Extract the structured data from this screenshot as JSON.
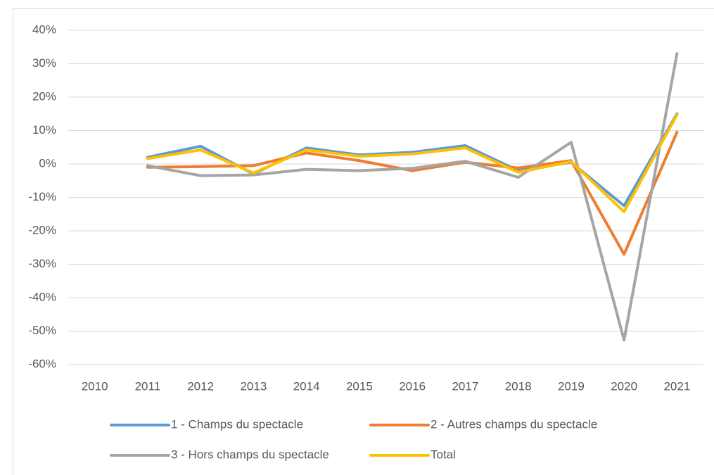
{
  "chart_data": {
    "type": "line",
    "categories": [
      "2010",
      "2011",
      "2012",
      "2013",
      "2014",
      "2015",
      "2016",
      "2017",
      "2018",
      "2019",
      "2020",
      "2021"
    ],
    "series": [
      {
        "name": "1 - Champs du spectacle",
        "color": "#5b9bd5",
        "values": [
          null,
          2,
          5.3,
          -3,
          4.8,
          2.7,
          3.5,
          5.5,
          -2,
          0.5,
          -12.5,
          15
        ]
      },
      {
        "name": "2 - Autres champs du spectacle",
        "color": "#ed7d31",
        "values": [
          null,
          -1,
          -0.8,
          -0.5,
          3.3,
          1,
          -2,
          0.5,
          -1.2,
          1,
          -27,
          9.5
        ]
      },
      {
        "name": "3 - Hors champs du spectacle",
        "color": "#a5a5a5",
        "values": [
          null,
          -0.5,
          -3.5,
          -3.3,
          -1.6,
          -2,
          -1.3,
          0.8,
          -4,
          6.5,
          -52.7,
          33
        ]
      },
      {
        "name": "Total",
        "color": "#ffc000",
        "values": [
          null,
          1.6,
          4.2,
          -2.7,
          4.2,
          2.3,
          3,
          4.8,
          -2.5,
          0.7,
          -14.3,
          14.7
        ]
      }
    ],
    "ylim": [
      -60,
      40
    ],
    "yticks": [
      {
        "value": -60,
        "label": "-60%"
      },
      {
        "value": -50,
        "label": "-50%"
      },
      {
        "value": -40,
        "label": "-40%"
      },
      {
        "value": -30,
        "label": "-30%"
      },
      {
        "value": -20,
        "label": "-20%"
      },
      {
        "value": -10,
        "label": "-10%"
      },
      {
        "value": 0,
        "label": "0%"
      },
      {
        "value": 10,
        "label": "10%"
      },
      {
        "value": 20,
        "label": "20%"
      },
      {
        "value": 30,
        "label": "30%"
      },
      {
        "value": 40,
        "label": "40%"
      }
    ],
    "grid": true,
    "legend": "bottom"
  }
}
